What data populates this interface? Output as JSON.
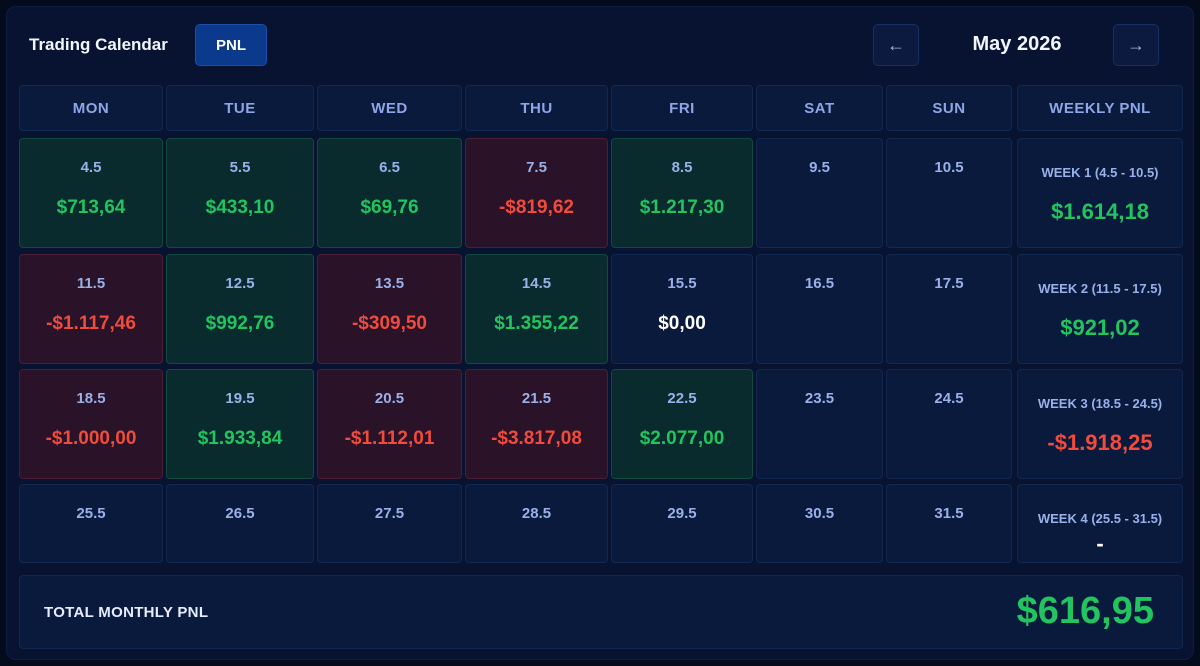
{
  "header": {
    "title": "Trading Calendar",
    "mode_button": "PNL",
    "prev_icon": "←",
    "next_icon": "→",
    "month": "May 2026"
  },
  "columns": [
    "MON",
    "TUE",
    "WED",
    "THU",
    "FRI",
    "SAT",
    "SUN",
    "WEEKLY PNL"
  ],
  "weeks": [
    {
      "days": [
        {
          "date": "4.5",
          "pnl": "$713,64",
          "status": "pos"
        },
        {
          "date": "5.5",
          "pnl": "$433,10",
          "status": "pos"
        },
        {
          "date": "6.5",
          "pnl": "$69,76",
          "status": "pos"
        },
        {
          "date": "7.5",
          "pnl": "-$819,62",
          "status": "neg"
        },
        {
          "date": "8.5",
          "pnl": "$1.217,30",
          "status": "pos"
        },
        {
          "date": "9.5",
          "pnl": "",
          "status": "none"
        },
        {
          "date": "10.5",
          "pnl": "",
          "status": "none"
        }
      ],
      "summary_label": "WEEK 1 (4.5 - 10.5)",
      "summary_value": "$1.614,18",
      "summary_status": "pos"
    },
    {
      "days": [
        {
          "date": "11.5",
          "pnl": "-$1.117,46",
          "status": "neg"
        },
        {
          "date": "12.5",
          "pnl": "$992,76",
          "status": "pos"
        },
        {
          "date": "13.5",
          "pnl": "-$309,50",
          "status": "neg"
        },
        {
          "date": "14.5",
          "pnl": "$1.355,22",
          "status": "pos"
        },
        {
          "date": "15.5",
          "pnl": "$0,00",
          "status": "zero"
        },
        {
          "date": "16.5",
          "pnl": "",
          "status": "none"
        },
        {
          "date": "17.5",
          "pnl": "",
          "status": "none"
        }
      ],
      "summary_label": "WEEK 2 (11.5 - 17.5)",
      "summary_value": "$921,02",
      "summary_status": "pos"
    },
    {
      "days": [
        {
          "date": "18.5",
          "pnl": "-$1.000,00",
          "status": "neg"
        },
        {
          "date": "19.5",
          "pnl": "$1.933,84",
          "status": "pos"
        },
        {
          "date": "20.5",
          "pnl": "-$1.112,01",
          "status": "neg"
        },
        {
          "date": "21.5",
          "pnl": "-$3.817,08",
          "status": "neg"
        },
        {
          "date": "22.5",
          "pnl": "$2.077,00",
          "status": "pos"
        },
        {
          "date": "23.5",
          "pnl": "",
          "status": "none"
        },
        {
          "date": "24.5",
          "pnl": "",
          "status": "none"
        }
      ],
      "summary_label": "WEEK 3 (18.5 - 24.5)",
      "summary_value": "-$1.918,25",
      "summary_status": "neg"
    },
    {
      "days": [
        {
          "date": "25.5",
          "pnl": "",
          "status": "none"
        },
        {
          "date": "26.5",
          "pnl": "",
          "status": "none"
        },
        {
          "date": "27.5",
          "pnl": "",
          "status": "none"
        },
        {
          "date": "28.5",
          "pnl": "",
          "status": "none"
        },
        {
          "date": "29.5",
          "pnl": "",
          "status": "none"
        },
        {
          "date": "30.5",
          "pnl": "",
          "status": "none"
        },
        {
          "date": "31.5",
          "pnl": "",
          "status": "none"
        }
      ],
      "summary_label": "WEEK 4 (25.5 - 31.5)",
      "summary_value": "-",
      "summary_status": "zero"
    }
  ],
  "total": {
    "label": "TOTAL MONTHLY PNL",
    "value": "$616,95"
  },
  "colors": {
    "positive": "#21c45e",
    "negative": "#f04b3c",
    "neutral": "#ffffff",
    "accent": "#0b3a8c"
  }
}
